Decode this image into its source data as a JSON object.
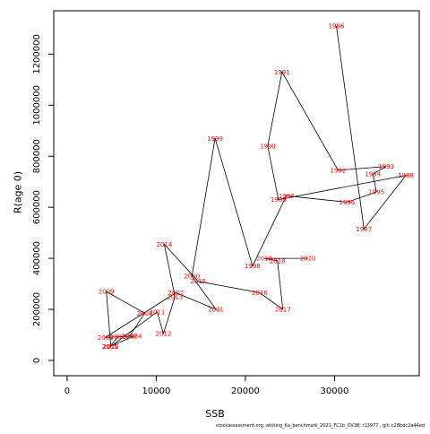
{
  "chart_data": {
    "type": "line",
    "xlabel": "SSB",
    "ylabel": "R(age 0)",
    "xlim": [
      -1500,
      39500
    ],
    "ylim": [
      -60000,
      1370000
    ],
    "x_ticks": [
      0,
      10000,
      20000,
      30000
    ],
    "y_ticks": [
      0,
      200000,
      400000,
      600000,
      800000,
      1000000,
      1200000
    ],
    "grid": false,
    "footer": "stockassessment.org,  whiting_6a_benchmark_2021_FC1b_OV38, r13977 ,  git: c28bdc2a44ed",
    "series": [
      {
        "line_color": "#000000",
        "label_color": "#ff0000",
        "points": [
          {
            "year": "1986",
            "x": 30200,
            "y": 1310000
          },
          {
            "year": "1987",
            "x": 33300,
            "y": 515000
          },
          {
            "year": "1988",
            "x": 38000,
            "y": 725000
          },
          {
            "year": "1989",
            "x": 23700,
            "y": 630000
          },
          {
            "year": "1990",
            "x": 22500,
            "y": 840000
          },
          {
            "year": "1991",
            "x": 24100,
            "y": 1130000
          },
          {
            "year": "1992",
            "x": 30400,
            "y": 745000
          },
          {
            "year": "1993",
            "x": 35800,
            "y": 760000
          },
          {
            "year": "1994",
            "x": 34300,
            "y": 730000
          },
          {
            "year": "1995",
            "x": 34700,
            "y": 660000
          },
          {
            "year": "1996",
            "x": 31400,
            "y": 620000
          },
          {
            "year": "1997",
            "x": 24600,
            "y": 645000
          },
          {
            "year": "1998",
            "x": 20800,
            "y": 370000
          },
          {
            "year": "1999",
            "x": 16600,
            "y": 870000
          },
          {
            "year": "2000",
            "x": 14000,
            "y": 330000
          },
          {
            "year": "2001",
            "x": 16700,
            "y": 200000
          },
          {
            "year": "2002",
            "x": 12200,
            "y": 265000
          },
          {
            "year": "2003",
            "x": 4300,
            "y": 90000
          },
          {
            "year": "2004",
            "x": 7500,
            "y": 95000
          },
          {
            "year": "2005",
            "x": 4800,
            "y": 55000
          },
          {
            "year": "2006",
            "x": 5700,
            "y": 92000
          },
          {
            "year": "2007",
            "x": 7000,
            "y": 95000
          },
          {
            "year": "2008",
            "x": 8700,
            "y": 185000
          },
          {
            "year": "2009",
            "x": 4400,
            "y": 270000
          },
          {
            "year": "2010",
            "x": 4900,
            "y": 55000
          },
          {
            "year": "2011",
            "x": 10100,
            "y": 190000
          },
          {
            "year": "2012",
            "x": 10800,
            "y": 105000
          },
          {
            "year": "2013",
            "x": 12100,
            "y": 250000
          },
          {
            "year": "2014",
            "x": 10900,
            "y": 455000
          },
          {
            "year": "2015",
            "x": 14700,
            "y": 310000
          },
          {
            "year": "2016",
            "x": 21600,
            "y": 265000
          },
          {
            "year": "2017",
            "x": 24200,
            "y": 200000
          },
          {
            "year": "2018",
            "x": 23600,
            "y": 390000
          },
          {
            "year": "2019",
            "x": 22100,
            "y": 400000
          },
          {
            "year": "2020",
            "x": 27000,
            "y": 400000
          }
        ]
      }
    ]
  }
}
